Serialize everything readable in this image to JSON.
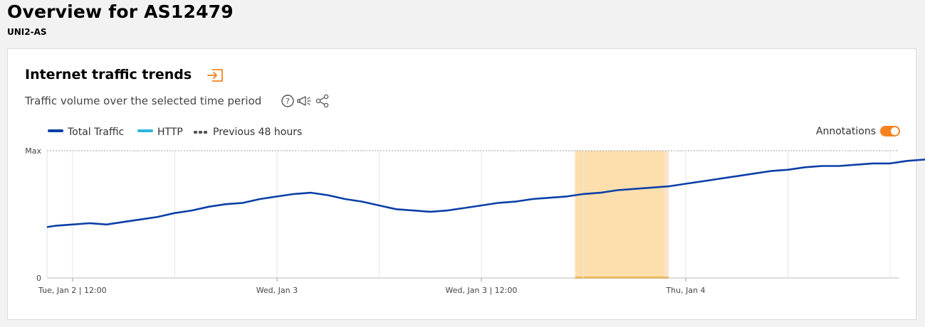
{
  "header": {
    "title": "Overview for AS12479",
    "subtitle": "UNI2-AS"
  },
  "card": {
    "title": "Internet traffic trends",
    "description": "Traffic volume over the selected time period",
    "icons": {
      "title_icon": "open-in-panel-icon",
      "help": "question-circle-icon",
      "announce": "megaphone-icon",
      "share": "share-icon"
    },
    "annotations_label": "Annotations",
    "annotations_on": true
  },
  "colors": {
    "total": "#0b3fa6",
    "http": "#2eb5e0",
    "previous": "#1a3a8a",
    "accent": "#f6821f",
    "annotation_band": "#fdd9a0",
    "annotation_bar": "#f8b93b"
  },
  "chart_data": {
    "type": "line",
    "y_labels": [
      "Max",
      "0"
    ],
    "x_tick_labels": [
      {
        "t": 0,
        "label": "Tue, Jan 2 | 12:00"
      },
      {
        "t": 12,
        "label": "Wed, Jan 3"
      },
      {
        "t": 24,
        "label": "Wed, Jan 3 | 12:00"
      },
      {
        "t": 36,
        "label": "Thu, Jan 4"
      }
    ],
    "grid": true,
    "legend_position": "top-left",
    "annotation": {
      "start": 29.5,
      "end": 35.0
    },
    "series": [
      {
        "name": "Total Traffic",
        "points": [
          [
            -1.5,
            0.4
          ],
          [
            -1,
            0.41
          ],
          [
            0,
            0.42
          ],
          [
            1,
            0.43
          ],
          [
            2,
            0.42
          ],
          [
            3,
            0.44
          ],
          [
            4,
            0.46
          ],
          [
            5,
            0.48
          ],
          [
            6,
            0.51
          ],
          [
            7,
            0.53
          ],
          [
            8,
            0.56
          ],
          [
            9,
            0.58
          ],
          [
            10,
            0.59
          ],
          [
            11,
            0.62
          ],
          [
            12,
            0.64
          ],
          [
            13,
            0.66
          ],
          [
            14,
            0.67
          ],
          [
            15,
            0.65
          ],
          [
            16,
            0.62
          ],
          [
            17,
            0.6
          ],
          [
            18,
            0.57
          ],
          [
            19,
            0.54
          ],
          [
            20,
            0.53
          ],
          [
            21,
            0.52
          ],
          [
            22,
            0.53
          ],
          [
            23,
            0.55
          ],
          [
            24,
            0.57
          ],
          [
            25,
            0.59
          ],
          [
            26,
            0.6
          ],
          [
            27,
            0.62
          ],
          [
            28,
            0.63
          ],
          [
            29,
            0.64
          ],
          [
            30,
            0.66
          ],
          [
            31,
            0.67
          ],
          [
            32,
            0.69
          ],
          [
            33,
            0.7
          ],
          [
            34,
            0.71
          ],
          [
            35,
            0.72
          ],
          [
            36,
            0.74
          ],
          [
            37,
            0.76
          ],
          [
            38,
            0.78
          ],
          [
            39,
            0.8
          ],
          [
            40,
            0.82
          ],
          [
            41,
            0.84
          ],
          [
            42,
            0.85
          ],
          [
            43,
            0.87
          ],
          [
            44,
            0.88
          ],
          [
            45,
            0.88
          ],
          [
            46,
            0.89
          ],
          [
            47,
            0.9
          ],
          [
            48,
            0.9
          ],
          [
            49,
            0.92
          ],
          [
            50,
            0.93
          ],
          [
            51,
            0.94
          ],
          [
            52,
            0.95
          ],
          [
            53,
            0.97
          ],
          [
            54,
            0.98
          ],
          [
            55,
            0.99
          ],
          [
            56,
            1.0
          ],
          [
            57,
            1.0
          ],
          [
            58,
            0.99
          ],
          [
            59,
            0.97
          ],
          [
            60,
            0.93
          ],
          [
            61,
            0.88
          ],
          [
            62,
            0.82
          ],
          [
            63,
            0.76
          ],
          [
            64,
            0.7
          ],
          [
            65,
            0.66
          ],
          [
            66,
            0.63
          ],
          [
            67,
            0.61
          ],
          [
            68,
            0.6
          ],
          [
            69,
            0.59
          ],
          [
            70,
            0.58
          ],
          [
            71,
            0.57
          ],
          [
            72,
            0.57
          ],
          [
            73,
            0.57
          ],
          [
            74,
            0.58
          ],
          [
            75,
            0.58
          ],
          [
            76,
            0.59
          ],
          [
            77,
            0.61
          ],
          [
            78,
            0.63
          ],
          [
            79,
            0.64
          ],
          [
            80,
            0.66
          ],
          [
            81,
            0.68
          ],
          [
            82,
            0.7
          ],
          [
            83,
            0.72
          ],
          [
            84,
            0.74
          ],
          [
            85,
            0.75
          ],
          [
            86,
            0.76
          ],
          [
            87,
            0.77
          ],
          [
            88,
            0.78
          ],
          [
            89,
            0.79
          ],
          [
            90,
            0.8
          ]
        ]
      },
      {
        "name": "HTTP",
        "points": []
      },
      {
        "name": "Previous 48 hours",
        "points": []
      }
    ]
  }
}
